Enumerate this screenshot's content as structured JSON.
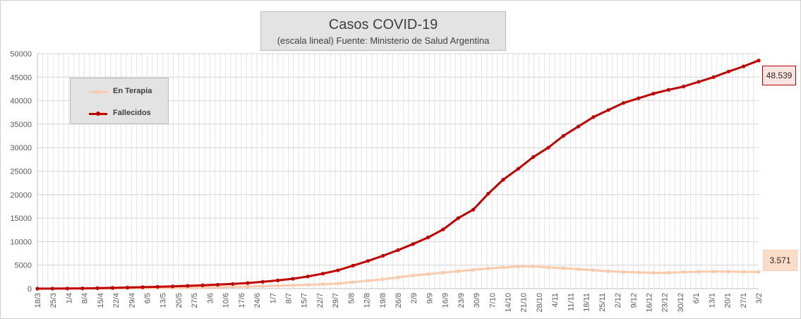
{
  "chart_data": {
    "type": "line",
    "title": "Casos COVID-19",
    "subtitle": "(escala lineal) Fuente: Ministerio de Salud Argentina",
    "xlabel": "",
    "ylabel": "",
    "ylim": [
      0,
      50000
    ],
    "yticks": [
      0,
      5000,
      10000,
      15000,
      20000,
      25000,
      30000,
      35000,
      40000,
      45000,
      50000
    ],
    "ytick_labels": [
      "0",
      "5000",
      "10000",
      "15000",
      "20000",
      "25000",
      "30000",
      "35000",
      "40000",
      "45000",
      "50000"
    ],
    "xticks": [
      "18/3",
      "25/3",
      "1/4",
      "8/4",
      "15/4",
      "22/4",
      "29/4",
      "6/5",
      "13/5",
      "20/5",
      "27/5",
      "3/6",
      "10/6",
      "17/6",
      "24/6",
      "1/7",
      "8/7",
      "15/7",
      "22/7",
      "29/7",
      "5/8",
      "12/8",
      "19/8",
      "26/8",
      "2/9",
      "9/9",
      "16/9",
      "23/9",
      "30/9",
      "7/10",
      "14/10",
      "21/10",
      "28/10",
      "4/11",
      "11/11",
      "18/11",
      "25/11",
      "2/12",
      "9/12",
      "16/12",
      "23/12",
      "30/12",
      "6/1",
      "13/1",
      "20/1",
      "27/1",
      "3/2"
    ],
    "grid": true,
    "legend_position": "top-left",
    "series": [
      {
        "name": "En Terapia",
        "color": "#f8cbad",
        "end_label": "3.571",
        "values": [
          0,
          0,
          10,
          25,
          40,
          60,
          80,
          100,
          120,
          160,
          200,
          260,
          320,
          380,
          450,
          520,
          620,
          700,
          820,
          950,
          1100,
          1400,
          1700,
          2000,
          2400,
          2800,
          3100,
          3400,
          3700,
          4000,
          4300,
          4500,
          4700,
          4750,
          4500,
          4350,
          4150,
          3950,
          3700,
          3550,
          3450,
          3350,
          3400,
          3520,
          3600,
          3650,
          3620,
          3580,
          3571
        ]
      },
      {
        "name": "Fallecidos",
        "color": "#c00000",
        "end_label": "48.539",
        "values": [
          0,
          10,
          30,
          60,
          110,
          170,
          240,
          320,
          390,
          490,
          600,
          710,
          850,
          1000,
          1200,
          1450,
          1750,
          2100,
          2600,
          3200,
          3900,
          4900,
          5900,
          7000,
          8200,
          9500,
          10900,
          12600,
          15000,
          16800,
          20200,
          23200,
          25500,
          28000,
          30000,
          32500,
          34500,
          36500,
          38000,
          39500,
          40500,
          41500,
          42300,
          43000,
          44000,
          45000,
          46200,
          47300,
          48539
        ]
      }
    ]
  }
}
